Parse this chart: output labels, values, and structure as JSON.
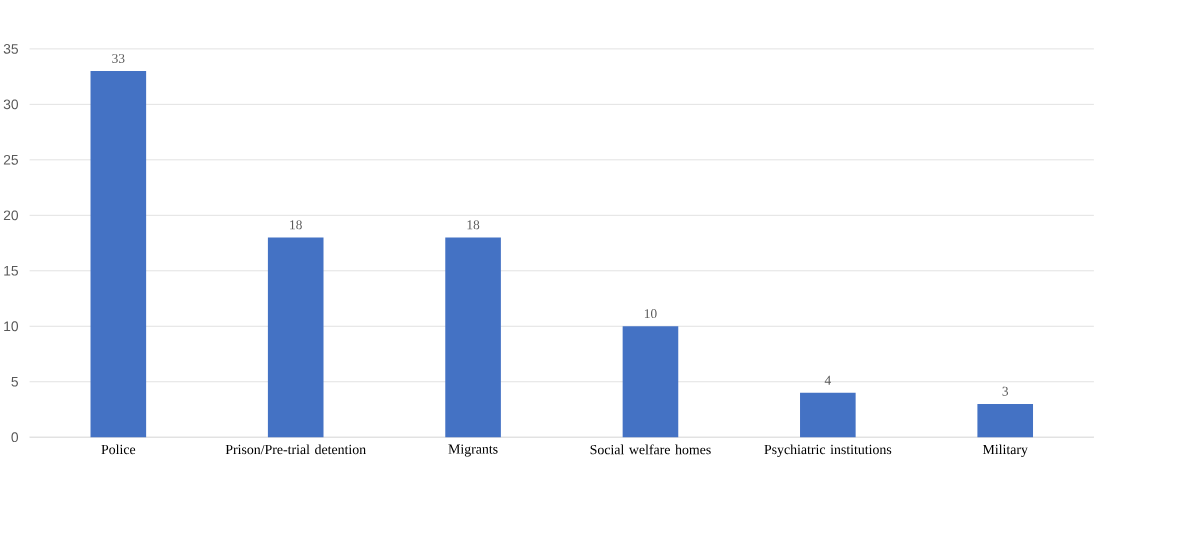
{
  "chart_data": {
    "type": "bar",
    "categories": [
      "Police",
      "Prison/Pre-trial detention",
      "Migrants",
      "Social welfare homes",
      "Psychiatric institutions",
      "Military"
    ],
    "values": [
      33,
      18,
      18,
      10,
      4,
      3
    ],
    "color": "#4472c4",
    "ylim": [
      0,
      35
    ],
    "yticks": [
      0,
      5,
      10,
      15,
      20,
      25,
      30,
      35
    ],
    "grid": "y",
    "data_labels": true
  }
}
